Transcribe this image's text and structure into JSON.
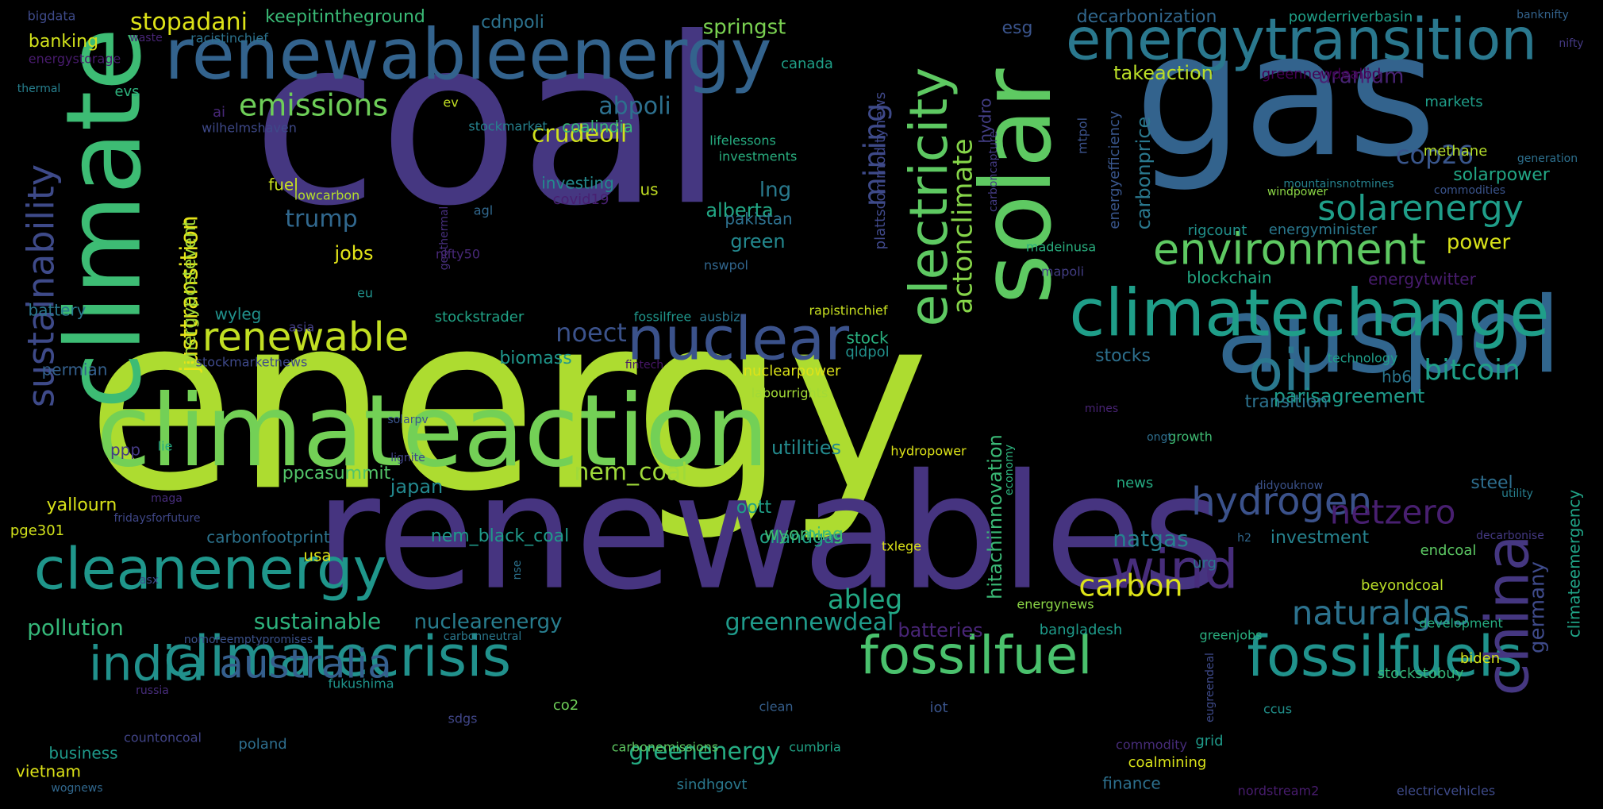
{
  "words": [
    {
      "t": "energy",
      "c": "#addc30"
    },
    {
      "t": "coal",
      "c": "#453781"
    },
    {
      "t": "renewables",
      "c": "#463480"
    },
    {
      "t": "gas",
      "c": "#33638d"
    },
    {
      "t": "climateaction",
      "c": "#73d056"
    },
    {
      "t": "climate",
      "c": "#3dbc74"
    },
    {
      "t": "solar",
      "c": "#5ec962"
    },
    {
      "t": "auspol",
      "c": "#31668e"
    },
    {
      "t": "renewableenergy",
      "c": "#33638d"
    },
    {
      "t": "climatechange",
      "c": "#1f9e89"
    },
    {
      "t": "energytransition",
      "c": "#2a788e"
    },
    {
      "t": "electricity",
      "c": "#5ec962"
    },
    {
      "t": "cleanenergy",
      "c": "#1f968b"
    },
    {
      "t": "climatecrisis",
      "c": "#21918c"
    },
    {
      "t": "fossilfuels",
      "c": "#20928c"
    },
    {
      "t": "fossilfuel",
      "c": "#4ac16d"
    },
    {
      "t": "nuclear",
      "c": "#3b528b"
    },
    {
      "t": "china",
      "c": "#453781"
    },
    {
      "t": "oil",
      "c": "#2a788e"
    },
    {
      "t": "wind",
      "c": "#472d7b"
    },
    {
      "t": "environment",
      "c": "#5ec962"
    },
    {
      "t": "sustainability",
      "c": "#3e4a89"
    },
    {
      "t": "india",
      "c": "#21918c"
    },
    {
      "t": "australia",
      "c": "#355f8d"
    },
    {
      "t": "renewable",
      "c": "#c2df23"
    },
    {
      "t": "hydrogen",
      "c": "#3b528b"
    },
    {
      "t": "emissions",
      "c": "#6ece58"
    },
    {
      "t": "solarenergy",
      "c": "#1f9e89"
    },
    {
      "t": "netzero",
      "c": "#481f70"
    },
    {
      "t": "justtransition",
      "c": "#e5e419"
    },
    {
      "t": "crudeoil",
      "c": "#d0e11c"
    },
    {
      "t": "naturalgas",
      "c": "#2c728e"
    },
    {
      "t": "cop26",
      "c": "#39568c"
    },
    {
      "t": "bitcoin",
      "c": "#1fa088"
    },
    {
      "t": "mining",
      "c": "#3e4a89"
    },
    {
      "t": "actonclimate",
      "c": "#86d549"
    },
    {
      "t": "carbon",
      "c": "#dde318"
    },
    {
      "t": "abpoli",
      "c": "#2d708e"
    },
    {
      "t": "greennewdeal",
      "c": "#1f9a8a"
    },
    {
      "t": "sustainable",
      "c": "#2db27d"
    },
    {
      "t": "noect",
      "c": "#3b528b"
    },
    {
      "t": "ableg",
      "c": "#22a884"
    },
    {
      "t": "greenenergy",
      "c": "#25ab82"
    },
    {
      "t": "nem_coal",
      "c": "#9fda3a"
    },
    {
      "t": "stopadani",
      "c": "#dde318"
    },
    {
      "t": "germany",
      "c": "#3e4a89"
    },
    {
      "t": "climateemergency",
      "c": "#20a386"
    },
    {
      "t": "trump",
      "c": "#31688e"
    },
    {
      "t": "natgas",
      "c": "#26828e"
    },
    {
      "t": "nuclearenergy",
      "c": "#287d8e"
    },
    {
      "t": "pollution",
      "c": "#35b779"
    },
    {
      "t": "hitachiinnovation",
      "c": "#3aba76"
    },
    {
      "t": "utilities",
      "c": "#238a8d"
    },
    {
      "t": "energypostevent",
      "c": "#a2da37"
    },
    {
      "t": "uranium",
      "c": "#482374"
    },
    {
      "t": "springst",
      "c": "#7ad151"
    },
    {
      "t": "power",
      "c": "#d8e219"
    },
    {
      "t": "lng",
      "c": "#297a8e"
    },
    {
      "t": "alberta",
      "c": "#22a785"
    },
    {
      "t": "green",
      "c": "#23888e"
    },
    {
      "t": "jobs",
      "c": "#e2e418"
    },
    {
      "t": "carbonprice",
      "c": "#2a788e"
    },
    {
      "t": "plattscommoditynews",
      "c": "#3f4889"
    },
    {
      "t": "parisagreement",
      "c": "#1e9b8a"
    },
    {
      "t": "takeaction",
      "c": "#bade28"
    },
    {
      "t": "energyefficiency",
      "c": "#39568c"
    },
    {
      "t": "esg",
      "c": "#3a548c"
    },
    {
      "t": "decarbonization",
      "c": "#31688e"
    },
    {
      "t": "keepitintheground",
      "c": "#3aba76"
    },
    {
      "t": "cdnpoli",
      "c": "#2c728e"
    },
    {
      "t": "banking",
      "c": "#d2e21b"
    },
    {
      "t": "yallourn",
      "c": "#d8e219"
    },
    {
      "t": "ppcasummit",
      "c": "#52c569"
    },
    {
      "t": "japan",
      "c": "#23888e"
    },
    {
      "t": "oott",
      "c": "#1fa088"
    },
    {
      "t": "oilandgas",
      "c": "#20a386"
    },
    {
      "t": "wyoming",
      "c": "#40bd72"
    },
    {
      "t": "carbonfootprint",
      "c": "#2c738e"
    },
    {
      "t": "nem_black_coal",
      "c": "#1f9a8a"
    },
    {
      "t": "batteries",
      "c": "#482576"
    },
    {
      "t": "biomass",
      "c": "#1f968b"
    },
    {
      "t": "stocks",
      "c": "#2d708e"
    },
    {
      "t": "transition",
      "c": "#2c728e"
    },
    {
      "t": "blockchain",
      "c": "#23a983"
    },
    {
      "t": "energytwitter",
      "c": "#481c6e"
    },
    {
      "t": "steel",
      "c": "#2e6e8e"
    },
    {
      "t": "investment",
      "c": "#26828e"
    },
    {
      "t": "endcoal",
      "c": "#5cc863"
    },
    {
      "t": "beyondcoal",
      "c": "#bade28"
    },
    {
      "t": "biden",
      "c": "#d2e21b"
    },
    {
      "t": "stockstobuy",
      "c": "#35b779"
    },
    {
      "t": "finance",
      "c": "#2d708e"
    },
    {
      "t": "urg",
      "c": "#2a768e"
    },
    {
      "t": "solarpower",
      "c": "#22a785"
    },
    {
      "t": "methane",
      "c": "#b5de2b"
    },
    {
      "t": "markets",
      "c": "#1f9e89"
    },
    {
      "t": "rigcount",
      "c": "#21918c"
    },
    {
      "t": "energyminister",
      "c": "#2a788e"
    },
    {
      "t": "powderriverbasin",
      "c": "#1fa088"
    },
    {
      "t": "greennewdealbd",
      "c": "#440154"
    },
    {
      "t": "mtpol",
      "c": "#3b528b"
    },
    {
      "t": "hydro",
      "c": "#433e85"
    },
    {
      "t": "coalindia",
      "c": "#37b878"
    },
    {
      "t": "investing",
      "c": "#238a8d"
    },
    {
      "t": "pakistan",
      "c": "#2d708e"
    },
    {
      "t": "canada",
      "c": "#1fa088"
    },
    {
      "t": "lifelessons",
      "c": "#26ad81"
    },
    {
      "t": "investments",
      "c": "#29af7f"
    },
    {
      "t": "stockmarket",
      "c": "#26828e"
    },
    {
      "t": "fuel",
      "c": "#cae11f"
    },
    {
      "t": "ai",
      "c": "#482878"
    },
    {
      "t": "evs",
      "c": "#2db27d"
    },
    {
      "t": "ev",
      "c": "#c2df23"
    },
    {
      "t": "us",
      "c": "#c2df23"
    },
    {
      "t": "covid19",
      "c": "#482071"
    },
    {
      "t": "lowcarbon",
      "c": "#b5de2b"
    },
    {
      "t": "geothermal",
      "c": "#472f7d"
    },
    {
      "t": "agl",
      "c": "#31688e"
    },
    {
      "t": "wilhelmshaven",
      "c": "#3e4989"
    },
    {
      "t": "racistinchief",
      "c": "#2c728e"
    },
    {
      "t": "bigdata",
      "c": "#3e4a89"
    },
    {
      "t": "waste",
      "c": "#482576"
    },
    {
      "t": "energystorage",
      "c": "#481b6d"
    },
    {
      "t": "thermal",
      "c": "#277f8e"
    },
    {
      "t": "battery",
      "c": "#2a788e"
    },
    {
      "t": "permian",
      "c": "#34608d"
    },
    {
      "t": "wyleg",
      "c": "#21918c"
    },
    {
      "t": "asia",
      "c": "#433e85"
    },
    {
      "t": "eu",
      "c": "#20928c"
    },
    {
      "t": "stockstrader",
      "c": "#20a386"
    },
    {
      "t": "fossilfree",
      "c": "#1f968b"
    },
    {
      "t": "ausbiz",
      "c": "#2a788e"
    },
    {
      "t": "rapistinchief",
      "c": "#c8e020"
    },
    {
      "t": "stock",
      "c": "#29af7f"
    },
    {
      "t": "qldpol",
      "c": "#21918c"
    },
    {
      "t": "stockmarketnews",
      "c": "#3e4989"
    },
    {
      "t": "fintech",
      "c": "#481769"
    },
    {
      "t": "nifty50",
      "c": "#482878"
    },
    {
      "t": "nswpol",
      "c": "#31668e"
    },
    {
      "t": "madeinusa",
      "c": "#29af7f"
    },
    {
      "t": "mapoli",
      "c": "#433e85"
    },
    {
      "t": "hb6",
      "c": "#2a768e"
    },
    {
      "t": "technology",
      "c": "#1f9e89"
    },
    {
      "t": "mines",
      "c": "#482374"
    },
    {
      "t": "growth",
      "c": "#3fbc73"
    },
    {
      "t": "ongt",
      "c": "#2e6e8e"
    },
    {
      "t": "labourrights",
      "c": "#a2da37"
    },
    {
      "t": "nuclearpower",
      "c": "#dde318"
    },
    {
      "t": "solarpv",
      "c": "#3a548c"
    },
    {
      "t": "lignite",
      "c": "#414487"
    },
    {
      "t": "lie",
      "c": "#25ab82"
    },
    {
      "t": "ppp",
      "c": "#443983"
    },
    {
      "t": "usa",
      "c": "#dde318"
    },
    {
      "t": "maga",
      "c": "#472d7b"
    },
    {
      "t": "fridaysforfuture",
      "c": "#3f4788"
    },
    {
      "t": "pge301",
      "c": "#d2e21b"
    },
    {
      "t": "hydropower",
      "c": "#dde318"
    },
    {
      "t": "economy",
      "c": "#2db27d"
    },
    {
      "t": "didyouknow",
      "c": "#3b528b"
    },
    {
      "t": "txlege",
      "c": "#dde318"
    },
    {
      "t": "news",
      "c": "#25ab82"
    },
    {
      "t": "h2",
      "c": "#31688e"
    },
    {
      "t": "decarbonise",
      "c": "#443983"
    },
    {
      "t": "utility",
      "c": "#277f8e"
    },
    {
      "t": "asx",
      "c": "#3e4989"
    },
    {
      "t": "nse",
      "c": "#2c728e"
    },
    {
      "t": "energynews",
      "c": "#8bd646"
    },
    {
      "t": "greenjobs",
      "c": "#29af7f"
    },
    {
      "t": "bangladesh",
      "c": "#1e9b8a"
    },
    {
      "t": "development",
      "c": "#26ad81"
    },
    {
      "t": "nomoreemptypromises",
      "c": "#3b528b"
    },
    {
      "t": "carbonneutral",
      "c": "#2a788e"
    },
    {
      "t": "russia",
      "c": "#472d7b"
    },
    {
      "t": "fukushima",
      "c": "#1f948c"
    },
    {
      "t": "eugreendeal",
      "c": "#3e4a89"
    },
    {
      "t": "ccus",
      "c": "#21918c"
    },
    {
      "t": "co2",
      "c": "#6ece58"
    },
    {
      "t": "clean",
      "c": "#355f8d"
    },
    {
      "t": "iot",
      "c": "#3a548c"
    },
    {
      "t": "sdgs",
      "c": "#404688"
    },
    {
      "t": "business",
      "c": "#1f9a8a"
    },
    {
      "t": "countoncoal",
      "c": "#414487"
    },
    {
      "t": "poland",
      "c": "#2e6e8e"
    },
    {
      "t": "carbonemissions",
      "c": "#5ec962"
    },
    {
      "t": "cumbria",
      "c": "#20a386"
    },
    {
      "t": "commodity",
      "c": "#472c7a"
    },
    {
      "t": "grid",
      "c": "#1f9a8a"
    },
    {
      "t": "coalmining",
      "c": "#d8e219"
    },
    {
      "t": "sindhgovt",
      "c": "#2a788e"
    },
    {
      "t": "nordstream2",
      "c": "#481c6e"
    },
    {
      "t": "electricvehicles",
      "c": "#3e4a89"
    },
    {
      "t": "vietnam",
      "c": "#dde318"
    },
    {
      "t": "wognews",
      "c": "#31688e"
    },
    {
      "t": "banknifty",
      "c": "#33638d"
    },
    {
      "t": "nifty",
      "c": "#443983"
    },
    {
      "t": "generation",
      "c": "#2d708e"
    },
    {
      "t": "commodities",
      "c": "#3a548c"
    },
    {
      "t": "mountainsnotmines",
      "c": "#26828e"
    },
    {
      "t": "carboncapture",
      "c": "#443a83"
    },
    {
      "t": "windpower",
      "c": "#8bd646"
    }
  ]
}
